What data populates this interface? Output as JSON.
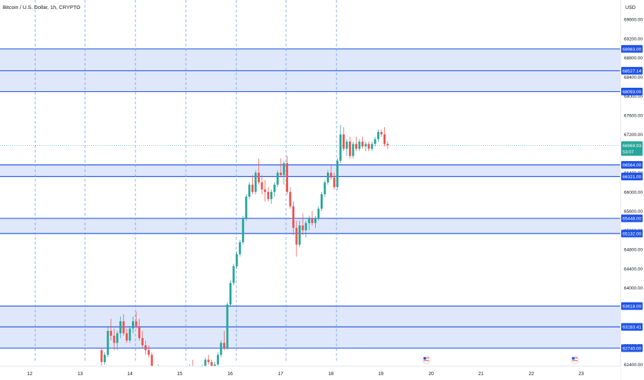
{
  "header": {
    "symbol_title": "Bitcoin / U.S. Dollar, 1h, CRYPTO",
    "currency": "USD"
  },
  "colors": {
    "up": "#26a69a",
    "down": "#ef5350",
    "zone_fill": "#dbe4fb",
    "zone_line": "#1e53e5",
    "grid_dash": "#6e9be8",
    "last_price_bg": "#26a69a"
  },
  "price_axis": {
    "ticks": [
      "69600.00",
      "69200.00",
      "68800.00",
      "68400.00",
      "68000.00",
      "67600.00",
      "67200.00",
      "66800.00",
      "66400.00",
      "66000.00",
      "65600.00",
      "65200.00",
      "64800.00",
      "64400.00",
      "64000.00",
      "63600.00",
      "63200.00",
      "62800.00",
      "62400.00"
    ],
    "last_price": "66969.93",
    "countdown": "53:07"
  },
  "time_axis": {
    "labels": [
      "12",
      "13",
      "14",
      "15",
      "16",
      "17",
      "18",
      "19",
      "20",
      "21",
      "22",
      "23"
    ],
    "event_icons": [
      "us-flag-icon",
      "us-flag-icon"
    ]
  },
  "chart_data": {
    "type": "candlestick",
    "title": "Bitcoin / U.S. Dollar, 1h, CRYPTO",
    "ylim": [
      62000,
      70000
    ],
    "zones": [
      {
        "top": 68983.0,
        "mid": 68527.14,
        "bottom": 68093.0,
        "labels": [
          "68983.00",
          "68527.14",
          "68093.00"
        ]
      },
      {
        "top": 66564.0,
        "bottom": 66321.0,
        "labels": [
          "66564.00",
          "66321.00"
        ]
      },
      {
        "top": 65448.0,
        "bottom": 65132.0,
        "labels": [
          "65448.00",
          "65132.00"
        ]
      },
      {
        "top": 63618.0,
        "mid": 63183.41,
        "bottom": 62740.0,
        "labels": [
          "63618.00",
          "63183.41",
          "62740.00"
        ]
      }
    ],
    "candles": [
      [
        62700,
        62750,
        62300,
        62450
      ],
      [
        62450,
        62650,
        62400,
        62600
      ],
      [
        62600,
        63200,
        62550,
        63100
      ],
      [
        63100,
        63350,
        62900,
        63000
      ],
      [
        63000,
        63150,
        62700,
        62850
      ],
      [
        62850,
        63100,
        62700,
        63050
      ],
      [
        63050,
        63400,
        62950,
        63300
      ],
      [
        63300,
        63450,
        63000,
        63050
      ],
      [
        63050,
        63150,
        62850,
        62900
      ],
      [
        62900,
        63200,
        62850,
        63150
      ],
      [
        63150,
        63400,
        63050,
        63300
      ],
      [
        63300,
        63500,
        63150,
        63200
      ],
      [
        63200,
        63350,
        62900,
        62950
      ],
      [
        62950,
        63100,
        62750,
        62800
      ],
      [
        62800,
        62900,
        62600,
        62700
      ],
      [
        62700,
        62800,
        62550,
        62600
      ],
      [
        62600,
        62650,
        62100,
        62150
      ],
      [
        62150,
        62300,
        62000,
        62250
      ],
      [
        62250,
        62400,
        62150,
        62300
      ],
      [
        62300,
        62350,
        62050,
        62100
      ],
      [
        62100,
        62200,
        61900,
        61950
      ],
      [
        61950,
        62100,
        61800,
        62050
      ],
      [
        62050,
        62250,
        62000,
        62200
      ],
      [
        62200,
        62300,
        62050,
        62100
      ],
      [
        62100,
        62150,
        61950,
        62000
      ],
      [
        62000,
        62200,
        61950,
        62150
      ],
      [
        62150,
        62300,
        62100,
        62250
      ],
      [
        62250,
        62350,
        62150,
        62200
      ],
      [
        62200,
        62400,
        62150,
        62350
      ],
      [
        62350,
        62500,
        62250,
        62300
      ],
      [
        62300,
        62350,
        62100,
        62150
      ],
      [
        62150,
        62300,
        62100,
        62250
      ],
      [
        62250,
        62400,
        62200,
        62350
      ],
      [
        62350,
        62550,
        62300,
        62500
      ],
      [
        62500,
        62600,
        62400,
        62450
      ],
      [
        62450,
        62500,
        62250,
        62300
      ],
      [
        62300,
        62450,
        62250,
        62400
      ],
      [
        62400,
        62650,
        62350,
        62600
      ],
      [
        62600,
        62900,
        62550,
        62850
      ],
      [
        62850,
        63100,
        62700,
        62750
      ],
      [
        62750,
        63700,
        62700,
        63650
      ],
      [
        63650,
        64150,
        63600,
        64100
      ],
      [
        64100,
        64500,
        64050,
        64450
      ],
      [
        64450,
        64750,
        64400,
        64700
      ],
      [
        64700,
        65000,
        64650,
        64950
      ],
      [
        64950,
        65500,
        64900,
        65450
      ],
      [
        65450,
        65950,
        65400,
        65900
      ],
      [
        65900,
        66200,
        65850,
        66150
      ],
      [
        66150,
        66350,
        65950,
        66000
      ],
      [
        66000,
        66450,
        65950,
        66400
      ],
      [
        66400,
        66700,
        66150,
        66200
      ],
      [
        66200,
        66350,
        65950,
        66050
      ],
      [
        66050,
        66250,
        65800,
        66000
      ],
      [
        66000,
        66100,
        65800,
        65850
      ],
      [
        65850,
        66050,
        65750,
        66000
      ],
      [
        66000,
        66200,
        65900,
        66150
      ],
      [
        66150,
        66450,
        66100,
        66400
      ],
      [
        66400,
        66700,
        66300,
        66350
      ],
      [
        66350,
        66650,
        66150,
        66600
      ],
      [
        66600,
        66750,
        65950,
        66000
      ],
      [
        66000,
        66100,
        65650,
        65700
      ],
      [
        65700,
        65800,
        65100,
        65250
      ],
      [
        65250,
        65400,
        64650,
        64900
      ],
      [
        64900,
        65400,
        64850,
        65300
      ],
      [
        65300,
        65550,
        65100,
        65200
      ],
      [
        65200,
        65400,
        65050,
        65350
      ],
      [
        65350,
        65500,
        65200,
        65450
      ],
      [
        65450,
        65600,
        65300,
        65350
      ],
      [
        65350,
        65500,
        65250,
        65450
      ],
      [
        65450,
        65700,
        65400,
        65650
      ],
      [
        65650,
        66000,
        65600,
        65950
      ],
      [
        65950,
        66250,
        65900,
        66200
      ],
      [
        66200,
        66450,
        66150,
        66400
      ],
      [
        66400,
        66550,
        66250,
        66300
      ],
      [
        66300,
        66400,
        66050,
        66100
      ],
      [
        66100,
        66700,
        66050,
        66650
      ],
      [
        66650,
        67400,
        66600,
        67200
      ],
      [
        67200,
        67350,
        66850,
        66900
      ],
      [
        66900,
        67100,
        66750,
        67050
      ],
      [
        67050,
        67150,
        66700,
        66750
      ],
      [
        66750,
        67050,
        66700,
        67000
      ],
      [
        67000,
        67150,
        66850,
        66900
      ],
      [
        66900,
        67100,
        66850,
        67050
      ],
      [
        67050,
        67150,
        66900,
        66950
      ],
      [
        66950,
        67050,
        66850,
        67000
      ],
      [
        67000,
        67050,
        66850,
        66900
      ],
      [
        66900,
        67050,
        66850,
        67000
      ],
      [
        67000,
        67150,
        66950,
        67100
      ],
      [
        67100,
        67300,
        67050,
        67250
      ],
      [
        67250,
        67300,
        67150,
        67200
      ],
      [
        67200,
        67350,
        66950,
        67000
      ],
      [
        67000,
        67050,
        66900,
        66970
      ]
    ]
  }
}
